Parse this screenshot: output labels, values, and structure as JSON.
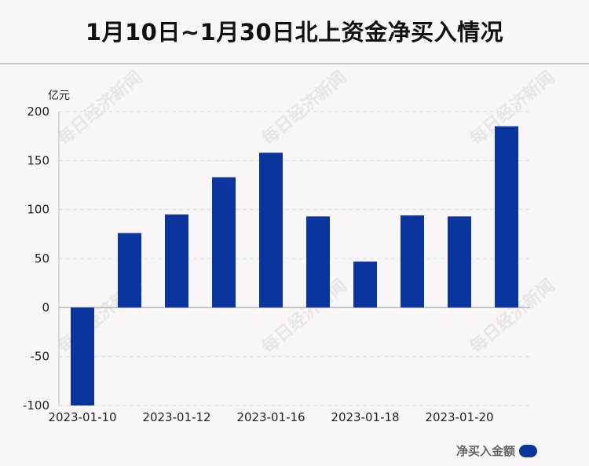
{
  "title": "1月10日~1月30日北上资金净买入情况",
  "unit_label": "亿元",
  "legend_label": "净买入金额",
  "watermark_text": "每日经济新闻",
  "colors": {
    "bar": "#0b359e",
    "axis": "#bdbdbd",
    "grid": "#dedede"
  },
  "chart_data": {
    "type": "bar",
    "title": "1月10日~1月30日北上资金净买入情况",
    "ylabel": "亿元",
    "xlabel": "",
    "ylim": [
      -100,
      200
    ],
    "yticks": [
      200,
      150,
      100,
      50,
      0,
      -50,
      -100
    ],
    "grid": true,
    "legend_position": "bottom-right",
    "x_tick_labels": [
      {
        "label": "2023-01-10",
        "index": 0
      },
      {
        "label": "2023-01-12",
        "index": 2
      },
      {
        "label": "2023-01-16",
        "index": 4
      },
      {
        "label": "2023-01-18",
        "index": 6
      },
      {
        "label": "2023-01-20",
        "index": 8
      }
    ],
    "series": [
      {
        "name": "净买入金额",
        "values": [
          -100,
          76,
          95,
          133,
          158,
          93,
          47,
          94,
          93,
          185
        ]
      }
    ]
  }
}
